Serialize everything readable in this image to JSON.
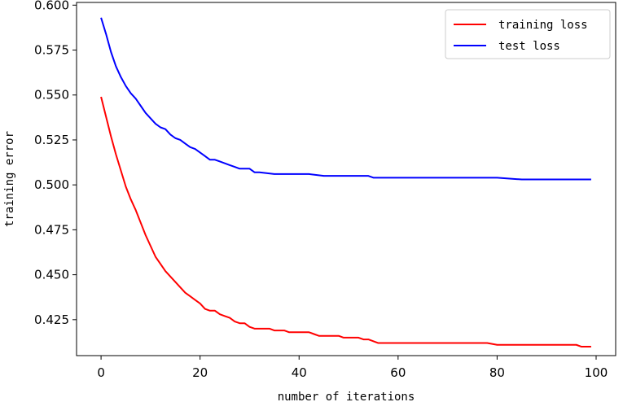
{
  "chart_data": {
    "type": "line",
    "xlabel": "number of iterations",
    "ylabel": "training error",
    "xlim": [
      -4.95,
      103.95
    ],
    "ylim": [
      0.405,
      0.6015
    ],
    "x_ticks": [
      {
        "value": 0,
        "label": "0"
      },
      {
        "value": 20,
        "label": "20"
      },
      {
        "value": 40,
        "label": "40"
      },
      {
        "value": 60,
        "label": "60"
      },
      {
        "value": 80,
        "label": "80"
      },
      {
        "value": 100,
        "label": "100"
      }
    ],
    "y_ticks": [
      {
        "value": 0.425,
        "label": "0.425"
      },
      {
        "value": 0.45,
        "label": "0.450"
      },
      {
        "value": 0.475,
        "label": "0.475"
      },
      {
        "value": 0.5,
        "label": "0.500"
      },
      {
        "value": 0.525,
        "label": "0.525"
      },
      {
        "value": 0.55,
        "label": "0.550"
      },
      {
        "value": 0.575,
        "label": "0.575"
      },
      {
        "value": 0.6,
        "label": "0.600"
      }
    ],
    "grid": false,
    "legend_position": "top-right",
    "series": [
      {
        "name": "training loss",
        "color": "#ff0000",
        "points": [
          [
            0,
            0.549
          ],
          [
            1,
            0.538
          ],
          [
            2,
            0.527
          ],
          [
            3,
            0.517
          ],
          [
            4,
            0.508
          ],
          [
            5,
            0.499
          ],
          [
            6,
            0.492
          ],
          [
            7,
            0.486
          ],
          [
            8,
            0.479
          ],
          [
            9,
            0.472
          ],
          [
            10,
            0.466
          ],
          [
            11,
            0.46
          ],
          [
            12,
            0.456
          ],
          [
            13,
            0.452
          ],
          [
            14,
            0.449
          ],
          [
            15,
            0.446
          ],
          [
            16,
            0.443
          ],
          [
            17,
            0.44
          ],
          [
            18,
            0.438
          ],
          [
            19,
            0.436
          ],
          [
            20,
            0.434
          ],
          [
            21,
            0.431
          ],
          [
            22,
            0.43
          ],
          [
            23,
            0.43
          ],
          [
            24,
            0.428
          ],
          [
            25,
            0.427
          ],
          [
            26,
            0.426
          ],
          [
            27,
            0.424
          ],
          [
            28,
            0.423
          ],
          [
            29,
            0.423
          ],
          [
            30,
            0.421
          ],
          [
            31,
            0.42
          ],
          [
            32,
            0.42
          ],
          [
            33,
            0.42
          ],
          [
            34,
            0.42
          ],
          [
            35,
            0.419
          ],
          [
            36,
            0.419
          ],
          [
            37,
            0.419
          ],
          [
            38,
            0.418
          ],
          [
            39,
            0.418
          ],
          [
            40,
            0.418
          ],
          [
            41,
            0.418
          ],
          [
            42,
            0.418
          ],
          [
            43,
            0.417
          ],
          [
            44,
            0.416
          ],
          [
            45,
            0.416
          ],
          [
            46,
            0.416
          ],
          [
            47,
            0.416
          ],
          [
            48,
            0.416
          ],
          [
            49,
            0.415
          ],
          [
            50,
            0.415
          ],
          [
            51,
            0.415
          ],
          [
            52,
            0.415
          ],
          [
            53,
            0.414
          ],
          [
            54,
            0.414
          ],
          [
            55,
            0.413
          ],
          [
            56,
            0.412
          ],
          [
            60,
            0.412
          ],
          [
            65,
            0.412
          ],
          [
            70,
            0.412
          ],
          [
            75,
            0.412
          ],
          [
            78,
            0.412
          ],
          [
            80,
            0.411
          ],
          [
            85,
            0.411
          ],
          [
            90,
            0.411
          ],
          [
            95,
            0.411
          ],
          [
            96,
            0.411
          ],
          [
            97,
            0.41
          ],
          [
            99,
            0.41
          ]
        ]
      },
      {
        "name": "test loss",
        "color": "#0000ff",
        "points": [
          [
            0,
            0.593
          ],
          [
            1,
            0.584
          ],
          [
            2,
            0.574
          ],
          [
            3,
            0.566
          ],
          [
            4,
            0.56
          ],
          [
            5,
            0.555
          ],
          [
            6,
            0.551
          ],
          [
            7,
            0.548
          ],
          [
            8,
            0.544
          ],
          [
            9,
            0.54
          ],
          [
            10,
            0.537
          ],
          [
            11,
            0.534
          ],
          [
            12,
            0.532
          ],
          [
            13,
            0.531
          ],
          [
            14,
            0.528
          ],
          [
            15,
            0.526
          ],
          [
            16,
            0.525
          ],
          [
            17,
            0.523
          ],
          [
            18,
            0.521
          ],
          [
            19,
            0.52
          ],
          [
            20,
            0.518
          ],
          [
            21,
            0.516
          ],
          [
            22,
            0.514
          ],
          [
            23,
            0.514
          ],
          [
            24,
            0.513
          ],
          [
            25,
            0.512
          ],
          [
            26,
            0.511
          ],
          [
            27,
            0.51
          ],
          [
            28,
            0.509
          ],
          [
            29,
            0.509
          ],
          [
            30,
            0.509
          ],
          [
            31,
            0.507
          ],
          [
            32,
            0.507
          ],
          [
            35,
            0.506
          ],
          [
            40,
            0.506
          ],
          [
            42,
            0.506
          ],
          [
            45,
            0.505
          ],
          [
            50,
            0.505
          ],
          [
            54,
            0.505
          ],
          [
            55,
            0.504
          ],
          [
            60,
            0.504
          ],
          [
            70,
            0.504
          ],
          [
            77,
            0.504
          ],
          [
            80,
            0.504
          ],
          [
            85,
            0.503
          ],
          [
            90,
            0.503
          ],
          [
            97,
            0.503
          ],
          [
            98,
            0.503
          ],
          [
            99,
            0.503
          ]
        ]
      }
    ]
  }
}
